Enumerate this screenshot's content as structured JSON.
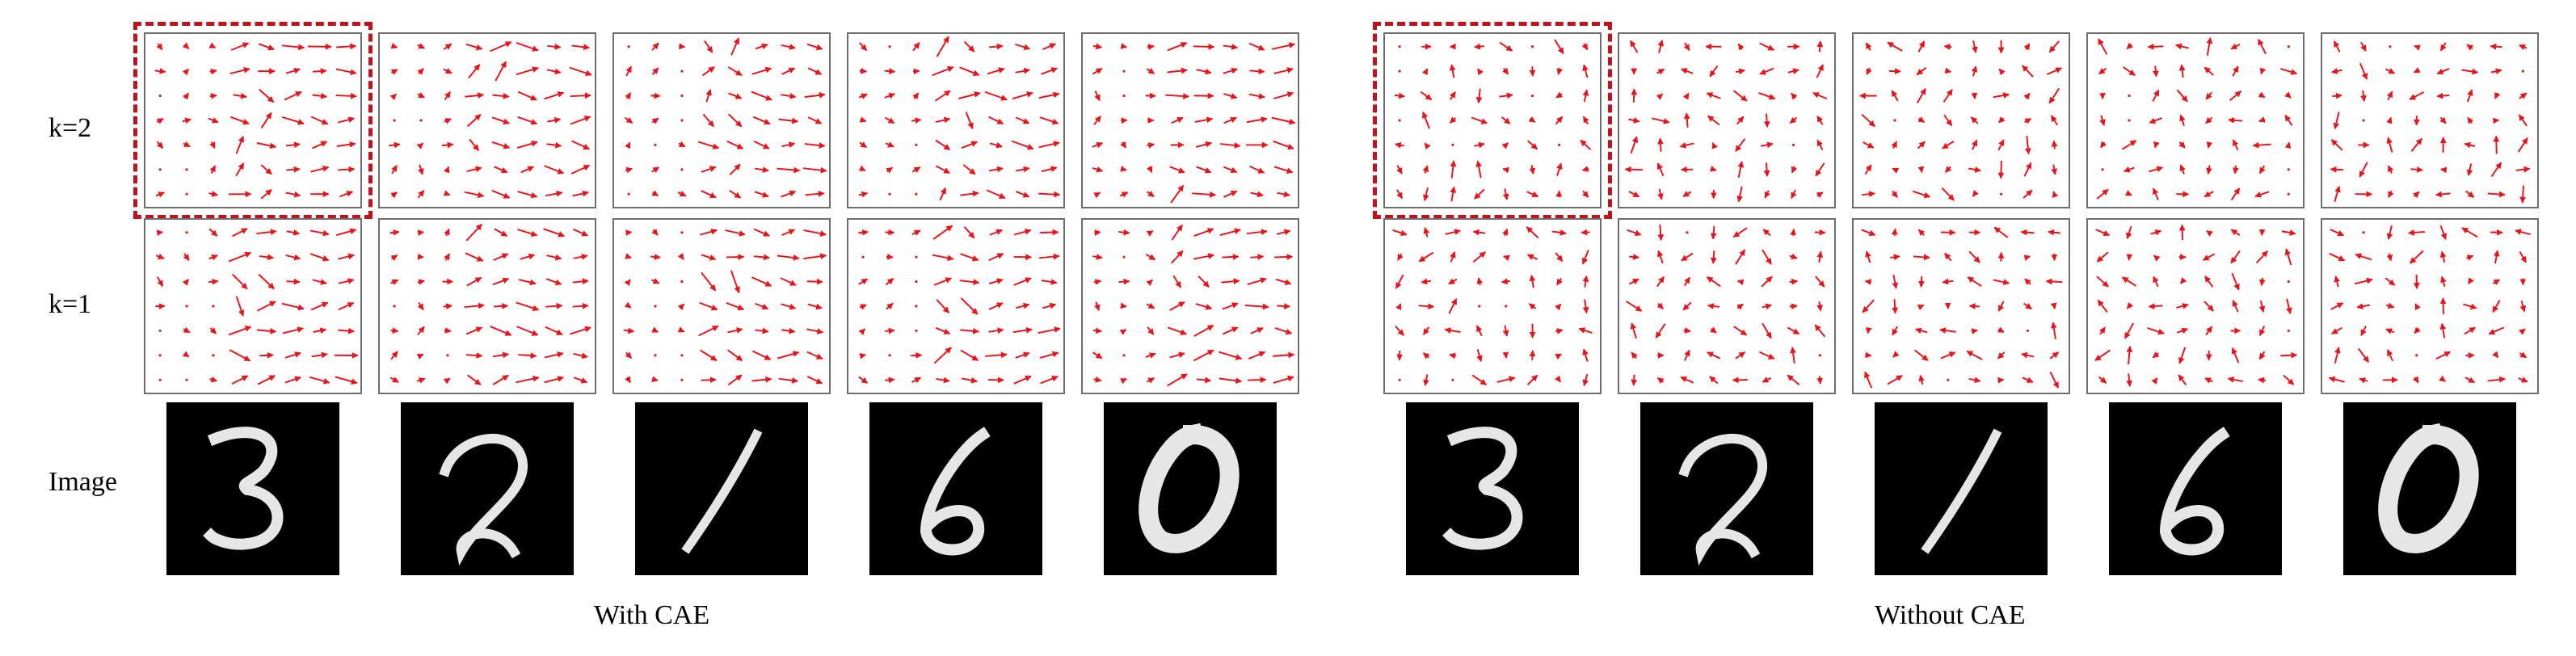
{
  "row_labels": {
    "k2": "k=2",
    "k1": "k=1",
    "image": "Image"
  },
  "groups": [
    {
      "caption": "With CAE"
    },
    {
      "caption": "Without CAE"
    }
  ],
  "digits": [
    "3",
    "2",
    "1",
    "6",
    "0"
  ],
  "colors": {
    "arrow": "#e8141c",
    "highlight": "#c0121c",
    "border": "#6e6e6e",
    "digit_bg": "#000000",
    "digit_fg": "#e6e6e6"
  }
}
